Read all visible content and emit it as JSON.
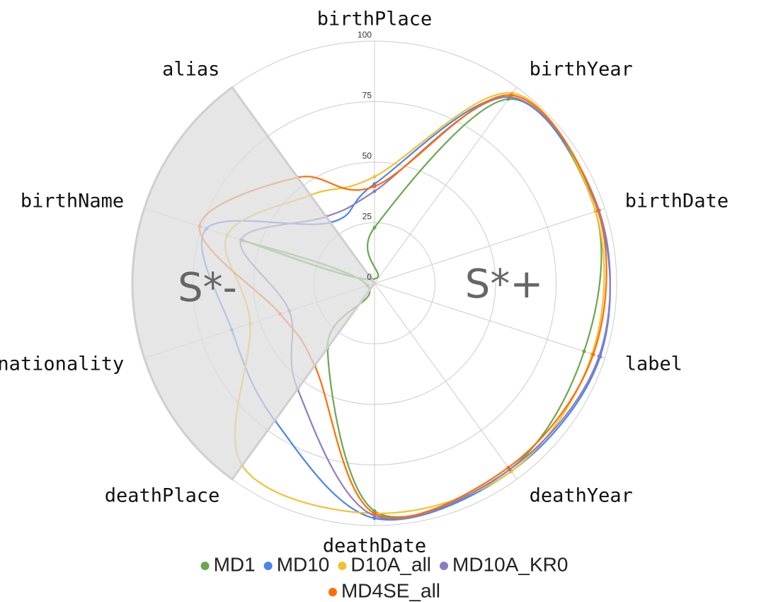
{
  "chart_data": {
    "type": "radar",
    "categories": [
      "birthPlace",
      "birthYear",
      "birthDate",
      "label",
      "deathYear",
      "deathDate",
      "deathPlace",
      "nationality",
      "birthName",
      "alias"
    ],
    "series": [
      {
        "name": "MD1",
        "color": "#6aa84f",
        "values": [
          23,
          94,
          96,
          91,
          95,
          94,
          33,
          3,
          57,
          2
        ]
      },
      {
        "name": "MD10",
        "color": "#4a86e8",
        "values": [
          41,
          95,
          97,
          98,
          96,
          97,
          70,
          62,
          73,
          31
        ]
      },
      {
        "name": "D10A_all",
        "color": "#f1c232",
        "values": [
          44,
          97,
          96,
          94.5,
          96,
          95,
          93,
          54,
          64,
          45
        ]
      },
      {
        "name": "MD10A_KR0",
        "color": "#8e7cc3",
        "values": [
          38,
          95,
          97.5,
          97.5,
          95,
          96,
          54,
          37,
          58,
          34
        ]
      },
      {
        "name": "MD4SE_all",
        "color": "#ff6d01",
        "values": [
          40,
          96,
          97,
          95,
          94,
          95,
          42,
          41,
          76,
          54
        ]
      }
    ],
    "rlim": [
      0,
      100
    ],
    "rticks": [
      0,
      25,
      50,
      75,
      100
    ],
    "grid": true,
    "annotations": [
      {
        "text": "S*-"
      },
      {
        "text": "S*+"
      }
    ]
  }
}
